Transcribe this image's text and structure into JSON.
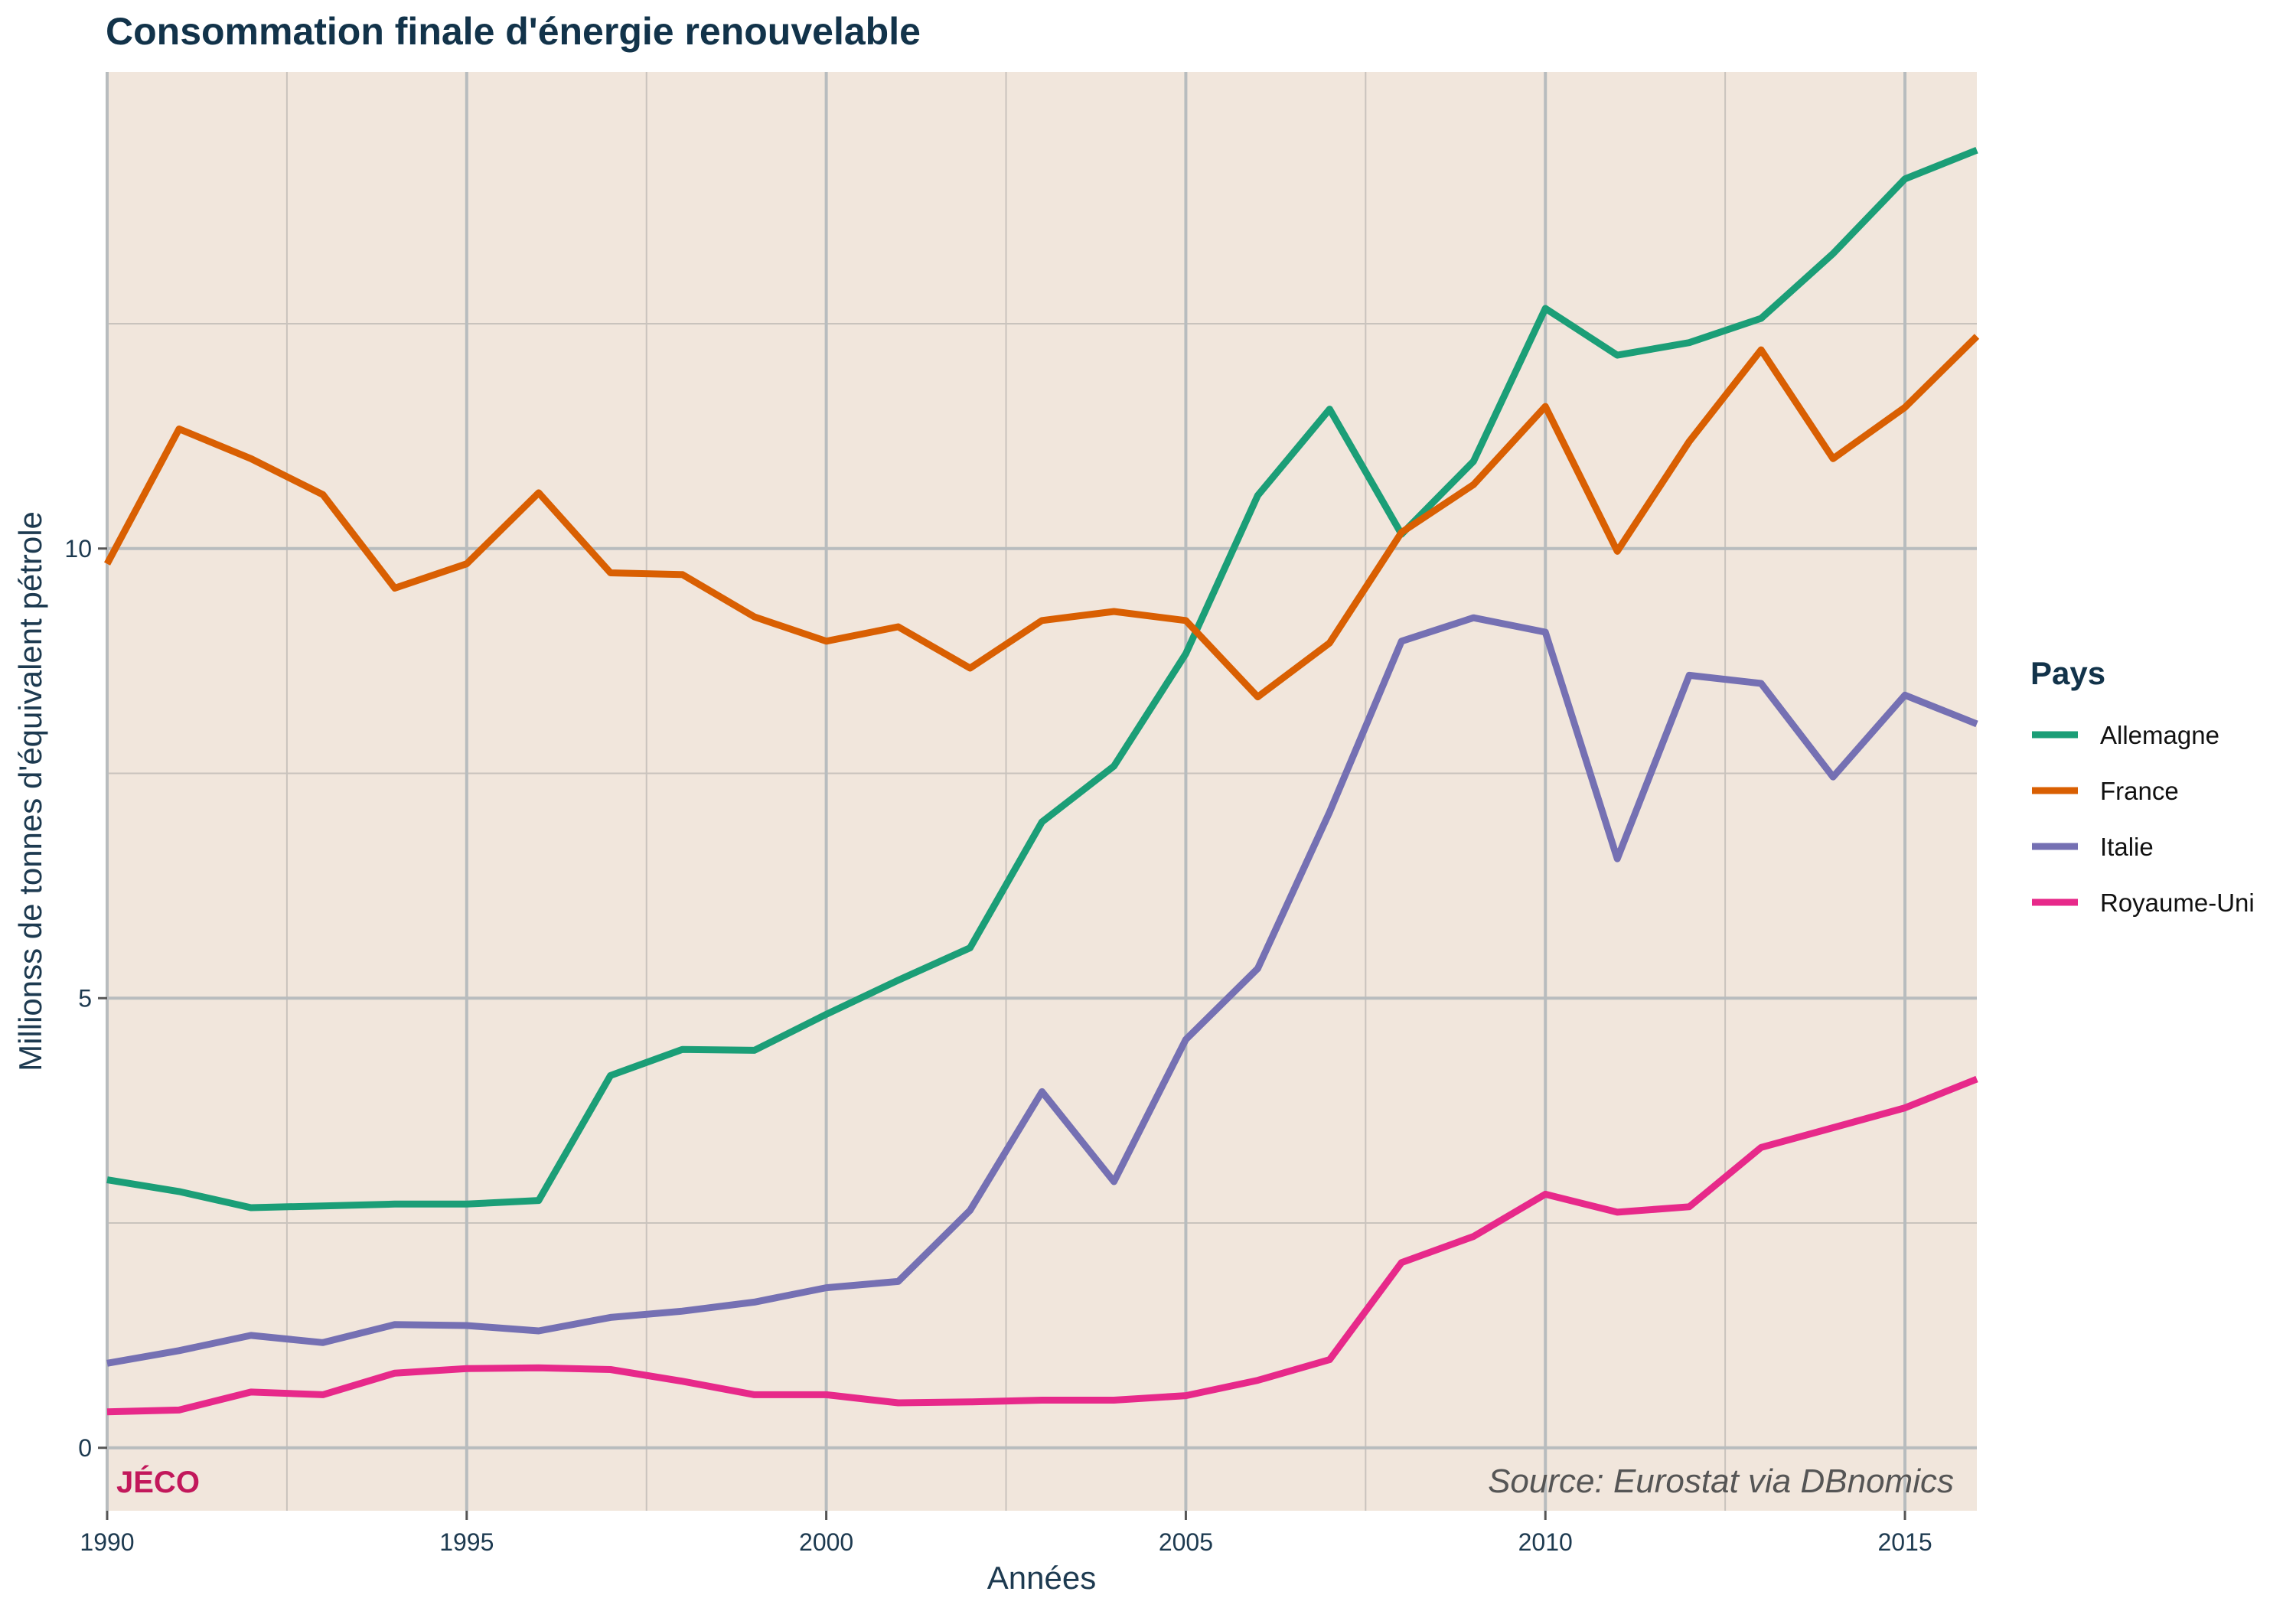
{
  "chart_data": {
    "type": "line",
    "title": "Consommation finale d'énergie renouvelable",
    "xlabel": "Années",
    "ylabel": "Millionss de tonnes d'équivalent pétrole",
    "x": [
      1990,
      1991,
      1992,
      1993,
      1994,
      1995,
      1996,
      1997,
      1998,
      1999,
      2000,
      2001,
      2002,
      2003,
      2004,
      2005,
      2006,
      2007,
      2008,
      2009,
      2010,
      2011,
      2012,
      2013,
      2014,
      2015,
      2016
    ],
    "xlim": [
      1990,
      2016
    ],
    "ylim": [
      -0.7,
      15.3
    ],
    "x_ticks": [
      1990,
      1995,
      2000,
      2005,
      2010,
      2015
    ],
    "x_minor_ticks": [
      1992.5,
      1997.5,
      2002.5,
      2007.5,
      2012.5
    ],
    "y_ticks": [
      0,
      5,
      10
    ],
    "y_minor_ticks": [
      2.5,
      7.5,
      12.5
    ],
    "grid": true,
    "legend_title": "Pays",
    "legend_position": "right",
    "series": [
      {
        "name": "Allemagne",
        "color": "#1b9e77",
        "values": [
          2.98,
          2.85,
          2.67,
          2.69,
          2.71,
          2.71,
          2.75,
          4.14,
          4.43,
          4.42,
          4.82,
          5.2,
          5.56,
          6.96,
          7.58,
          8.83,
          10.59,
          11.55,
          10.16,
          10.97,
          12.67,
          12.15,
          12.29,
          12.56,
          13.28,
          14.11,
          14.43
        ]
      },
      {
        "name": "France",
        "color": "#d95f02",
        "values": [
          9.83,
          11.33,
          11.0,
          10.6,
          9.56,
          9.83,
          10.62,
          9.73,
          9.71,
          9.24,
          8.97,
          9.13,
          8.67,
          9.2,
          9.3,
          9.2,
          8.35,
          8.95,
          10.18,
          10.71,
          11.58,
          9.97,
          11.19,
          12.21,
          11.0,
          11.57,
          12.36
        ]
      },
      {
        "name": "Italie",
        "color": "#7570b3",
        "values": [
          0.94,
          1.08,
          1.25,
          1.17,
          1.37,
          1.36,
          1.3,
          1.45,
          1.52,
          1.62,
          1.78,
          1.85,
          2.64,
          3.96,
          2.96,
          4.54,
          5.33,
          7.07,
          8.97,
          9.23,
          9.07,
          6.55,
          8.59,
          8.5,
          7.46,
          8.37,
          8.05
        ]
      },
      {
        "name": "Royaume-Uni",
        "color": "#e7298a",
        "values": [
          0.4,
          0.42,
          0.62,
          0.59,
          0.83,
          0.88,
          0.89,
          0.87,
          0.74,
          0.59,
          0.59,
          0.5,
          0.51,
          0.53,
          0.53,
          0.58,
          0.75,
          0.98,
          2.06,
          2.35,
          2.82,
          2.62,
          2.68,
          3.34,
          3.56,
          3.78,
          4.1
        ]
      }
    ],
    "annotations": {
      "watermark": "JÉCO",
      "source": "Source: Eurostat via DBnomics"
    }
  },
  "colors": {
    "panel_background": "#f1e6dc",
    "grid_major": "#b8bcbe",
    "grid_minor": "#c9c3bd",
    "title_text": "#12334a",
    "axis_text": "#1d3a50",
    "watermark": "#c2185b",
    "source_text": "#555555"
  }
}
